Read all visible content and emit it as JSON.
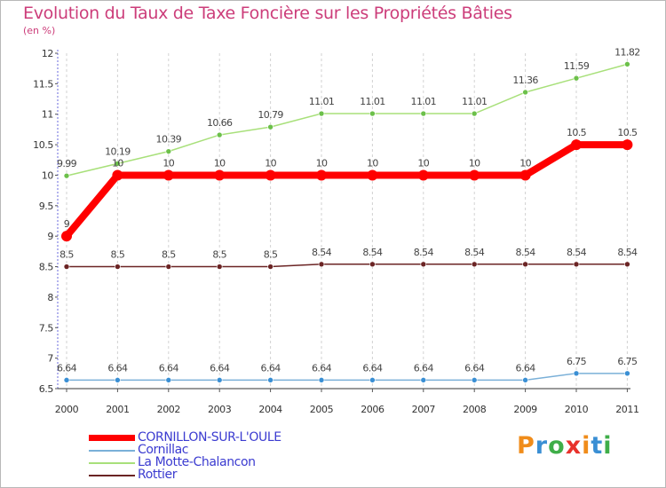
{
  "title": "Evolution du Taux de Taxe Foncière sur les Propriétés Bâties",
  "unit": "(en %)",
  "brand": {
    "letters": [
      "P",
      "r",
      "o",
      "x",
      "i",
      "t",
      "i"
    ],
    "colors": [
      "#f08c1a",
      "#3a8fd4",
      "#3fae49",
      "#e8322c",
      "#f08c1a",
      "#3a8fd4",
      "#3fae49"
    ]
  },
  "chart_data": {
    "type": "line",
    "title": "Evolution du Taux de Taxe Foncière sur les Propriétés Bâties",
    "ylabel": "(en %)",
    "xlabel": "",
    "ylim": [
      6.5,
      12
    ],
    "y_ticks": [
      "6.5",
      "7",
      "7.5",
      "8",
      "8.5",
      "9",
      "9.5",
      "10",
      "10.5",
      "11",
      "11.5",
      "12"
    ],
    "y_tick_values": [
      6.5,
      7,
      7.5,
      8,
      8.5,
      9,
      9.5,
      10,
      10.5,
      11,
      11.5,
      12
    ],
    "categories": [
      "2000",
      "2001",
      "2002",
      "2003",
      "2004",
      "2005",
      "2006",
      "2007",
      "2008",
      "2009",
      "2010",
      "2011"
    ],
    "grid": "vertical dashed",
    "legend_position": "bottom-left",
    "series": [
      {
        "name": "Rottier",
        "color": "#6b2424",
        "marker": "#6b2424",
        "values": [
          8.5,
          8.5,
          8.5,
          8.5,
          8.5,
          8.54,
          8.54,
          8.54,
          8.54,
          8.54,
          8.54,
          8.54
        ],
        "labels": [
          "8.5",
          "8.5",
          "8.5",
          "8.5",
          "8.5",
          "8.54",
          "8.54",
          "8.54",
          "8.54",
          "8.54",
          "8.54",
          "8.54"
        ]
      },
      {
        "name": "Cornillac",
        "color": "#7ab0d8",
        "marker": "#3a8fd4",
        "values": [
          6.64,
          6.64,
          6.64,
          6.64,
          6.64,
          6.64,
          6.64,
          6.64,
          6.64,
          6.64,
          6.75,
          6.75
        ],
        "labels": [
          "6.64",
          "6.64",
          "6.64",
          "6.64",
          "6.64",
          "6.64",
          "6.64",
          "6.64",
          "6.64",
          "6.64",
          "6.75",
          "6.75"
        ]
      },
      {
        "name": "La Motte-Chalancon",
        "color": "#a8e07a",
        "marker": "#6cc04a",
        "values": [
          9.99,
          10.19,
          10.39,
          10.66,
          10.79,
          11.01,
          11.01,
          11.01,
          11.01,
          11.36,
          11.59,
          11.82
        ],
        "labels": [
          "9.99",
          "10.19",
          "10.39",
          "10.66",
          "10.79",
          "11.01",
          "11.01",
          "11.01",
          "11.01",
          "11.36",
          "11.59",
          "11.82"
        ]
      },
      {
        "name": "CORNILLON-SUR-L'OULE",
        "color": "#ff0000",
        "marker": "#ff0000",
        "thick": true,
        "values": [
          9,
          10,
          10,
          10,
          10,
          10,
          10,
          10,
          10,
          10,
          10.5,
          10.5
        ],
        "labels": [
          "9",
          "10",
          "10",
          "10",
          "10",
          "10",
          "10",
          "10",
          "10",
          "10",
          "10.5",
          "10.5"
        ]
      }
    ]
  },
  "legend": [
    {
      "label": "CORNILLON-SUR-L'OULE",
      "color": "#ff0000",
      "thick": true
    },
    {
      "label": "Cornillac",
      "color": "#7ab0d8",
      "thick": false
    },
    {
      "label": "La Motte-Chalancon",
      "color": "#a8e07a",
      "thick": false
    },
    {
      "label": "Rottier",
      "color": "#6b2424",
      "thick": false
    }
  ]
}
